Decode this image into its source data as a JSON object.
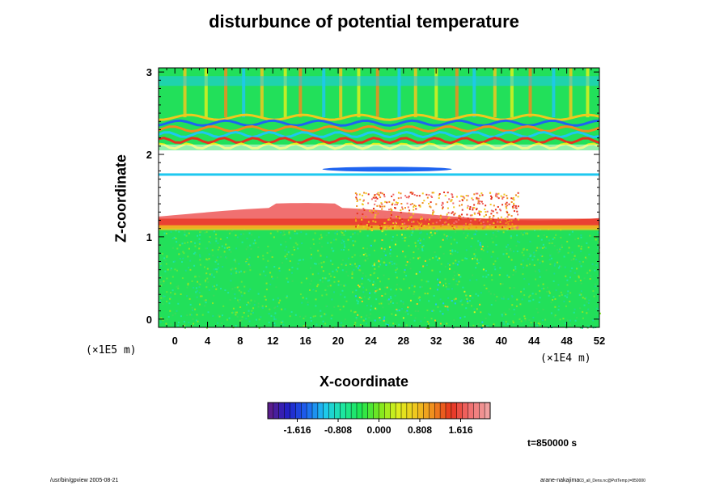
{
  "chart_data": {
    "type": "heatmap",
    "title": "disturbunce of potential temperature",
    "xlabel": "X-coordinate",
    "ylabel": "Z-coordinate",
    "x_scale_note": "(×1E4 m)",
    "y_scale_note": "(×1E5 m)",
    "xlim": [
      -2,
      52
    ],
    "ylim": [
      -0.1,
      3.05
    ],
    "x_ticks": [
      0,
      4,
      8,
      12,
      16,
      20,
      24,
      28,
      32,
      36,
      40,
      44,
      48,
      52
    ],
    "y_ticks": [
      0,
      1,
      2,
      3
    ],
    "colorbar": {
      "ticks": [
        "-1.616",
        "-0.808",
        "0.000",
        "0.808",
        "1.616"
      ],
      "range": [
        -2.2,
        2.2
      ],
      "colors": [
        "#5a1e8c",
        "#2020c8",
        "#1e64f0",
        "#1ec8f0",
        "#1ee6a0",
        "#1ee650",
        "#78e61e",
        "#dcf01e",
        "#f0c81e",
        "#f08c1e",
        "#e6321e",
        "#f06e6e",
        "#f0a0a0"
      ]
    },
    "regions": [
      {
        "name": "upper wave layer",
        "z_range": [
          2.05,
          3.05
        ],
        "dominant_value": 0.0
      },
      {
        "name": "blank band",
        "z_range": [
          1.4,
          2.05
        ],
        "dominant_value": null
      },
      {
        "name": "warm disturbance layer",
        "z_range": [
          1.1,
          1.4
        ],
        "dominant_value": 1.6
      },
      {
        "name": "lower layer",
        "z_range": [
          -0.1,
          1.1
        ],
        "dominant_value": 0.0
      }
    ]
  },
  "annotations": {
    "time": "t=850000 s",
    "footer_left": "/usr/bin/gpview 2005-08-21",
    "footer_right_main": "arane-nakajima",
    "footer_right_sub": "03_all_Dens.nc@PotTemp,t=850000"
  }
}
